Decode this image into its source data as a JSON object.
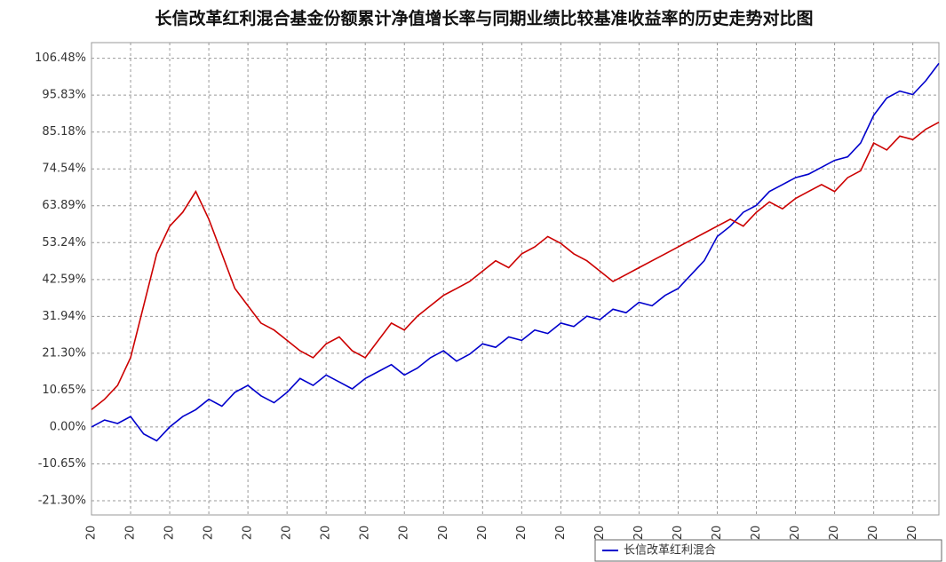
{
  "chart_data": {
    "type": "line",
    "title": "长信改革红利混合基金份额累计净值增长率与同期业绩比较基准收益率的历史走势对比图",
    "categories": [
      "20",
      null,
      null,
      "20",
      null,
      null,
      "20",
      null,
      null,
      "20",
      null,
      null,
      "20",
      null,
      null,
      "20",
      null,
      null,
      "20",
      null,
      null,
      "20",
      null,
      null,
      "20",
      null,
      null,
      "20",
      null,
      null,
      "20",
      null,
      null,
      "20",
      null,
      null,
      "20",
      null,
      null,
      "20",
      null,
      null,
      "20",
      null,
      null,
      "20",
      null,
      null,
      "20",
      null,
      null,
      "20",
      null,
      null,
      "20",
      null,
      null,
      "20",
      null,
      null,
      "20",
      null,
      null,
      "20",
      null,
      null
    ],
    "series": [
      {
        "name": "长信改革红利混合",
        "color": "#0000cc",
        "values": [
          0,
          2,
          1,
          3,
          -2,
          -4,
          0,
          3,
          5,
          8,
          6,
          10,
          12,
          9,
          7,
          10,
          14,
          12,
          15,
          13,
          11,
          14,
          16,
          18,
          15,
          17,
          20,
          22,
          19,
          21,
          24,
          23,
          26,
          25,
          28,
          27,
          30,
          29,
          32,
          31,
          34,
          33,
          36,
          35,
          38,
          40,
          44,
          48,
          55,
          58,
          62,
          64,
          68,
          70,
          72,
          73,
          75,
          77,
          78,
          82,
          90,
          95,
          97,
          96,
          100,
          105
        ]
      },
      {
        "color": "#cc0000",
        "values": [
          5,
          8,
          12,
          20,
          35,
          50,
          58,
          62,
          68,
          60,
          50,
          40,
          35,
          30,
          28,
          25,
          22,
          20,
          24,
          26,
          22,
          20,
          25,
          30,
          28,
          32,
          35,
          38,
          40,
          42,
          45,
          48,
          46,
          50,
          52,
          55,
          53,
          50,
          48,
          45,
          42,
          44,
          46,
          48,
          50,
          52,
          54,
          56,
          58,
          60,
          58,
          62,
          65,
          63,
          66,
          68,
          70,
          68,
          72,
          74,
          82,
          80,
          84,
          83,
          86,
          88
        ]
      }
    ],
    "ylim": [
      -25.4,
      111
    ],
    "yticks": [
      {
        "value": 106.48,
        "label": "106.48%"
      },
      {
        "value": 95.83,
        "label": "95.83%"
      },
      {
        "value": 85.18,
        "label": "85.18%"
      },
      {
        "value": 74.54,
        "label": "74.54%"
      },
      {
        "value": 63.89,
        "label": "63.89%"
      },
      {
        "value": 53.24,
        "label": "53.24%"
      },
      {
        "value": 42.59,
        "label": "42.59%"
      },
      {
        "value": 31.94,
        "label": "31.94%"
      },
      {
        "value": 21.3,
        "label": "21.30%"
      },
      {
        "value": 10.65,
        "label": "10.65%"
      },
      {
        "value": 0,
        "label": "0.00%"
      },
      {
        "value": -10.65,
        "label": "-10.65%"
      },
      {
        "value": -21.3,
        "label": "-21.30%"
      }
    ],
    "grid": true
  }
}
